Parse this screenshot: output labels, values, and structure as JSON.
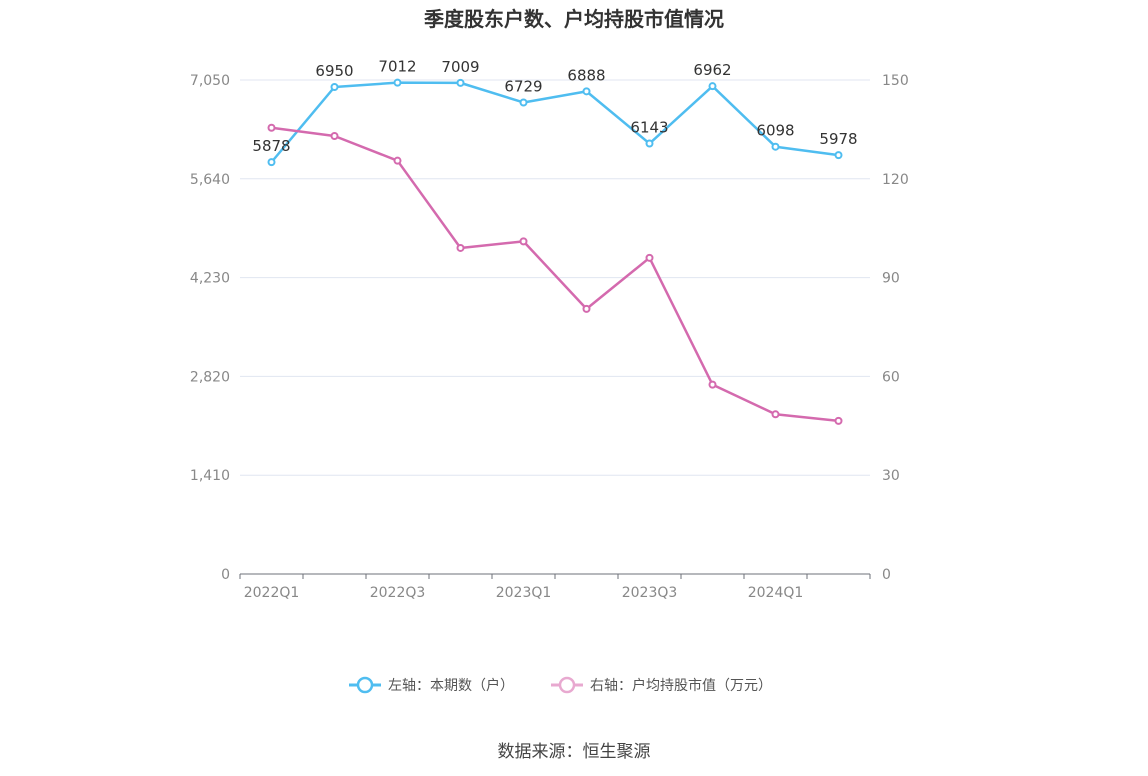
{
  "chart_data": {
    "type": "line",
    "title": "季度股东户数、户均持股市值情况",
    "x": [
      "2022Q1",
      "2022Q2",
      "2022Q3",
      "2022Q4",
      "2023Q1",
      "2023Q2",
      "2023Q3",
      "2023Q4",
      "2024Q1",
      "2024Q2"
    ],
    "x_tick_labels": [
      "2022Q1",
      "2022Q3",
      "2023Q1",
      "2023Q3",
      "2024Q1"
    ],
    "y_left": {
      "ylim": [
        0,
        7050
      ],
      "ticks": [
        "0",
        "1,410",
        "2,820",
        "4,230",
        "5,640",
        "7,050"
      ]
    },
    "y_right": {
      "ylim": [
        0,
        150
      ],
      "ticks": [
        "0",
        "30",
        "60",
        "90",
        "120",
        "150"
      ]
    },
    "grid": true,
    "legend_position": "bottom",
    "series": [
      {
        "name": "左轴：本期数（户）",
        "axis": "left",
        "color": "#4fbdf0",
        "values": [
          5878,
          6950,
          7012,
          7009,
          6729,
          6888,
          6143,
          6962,
          6098,
          5978
        ],
        "labels": [
          "5878",
          "6950",
          "7012",
          "7009",
          "6729",
          "6888",
          "6143",
          "6962",
          "6098",
          "5978"
        ]
      },
      {
        "name": "右轴：户均持股市值（万元）",
        "axis": "right",
        "color": "#d46aae",
        "values": [
          135.5,
          133,
          125.5,
          99,
          101,
          80.5,
          96,
          57.5,
          48.5,
          46.5
        ]
      }
    ],
    "source": "数据来源：恒生聚源"
  }
}
